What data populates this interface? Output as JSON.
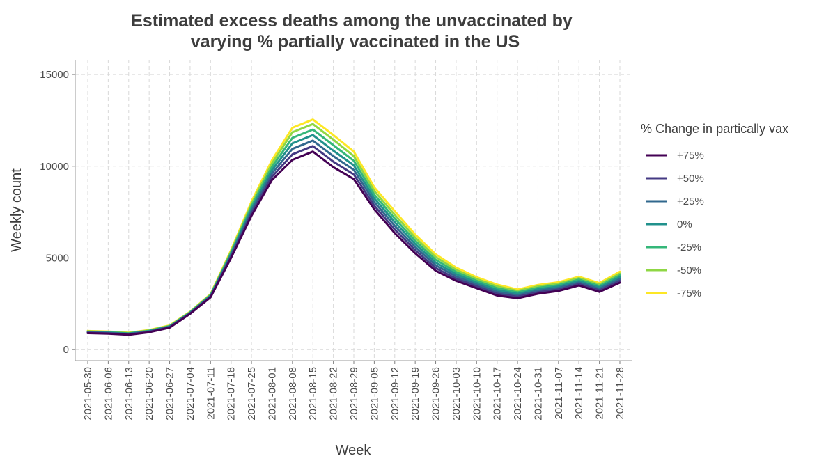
{
  "chart_data": {
    "type": "line",
    "title_lines": [
      "Estimated excess deaths among the unvaccinated by",
      "varying % partially vaccinated in the US"
    ],
    "xlabel": "Week",
    "ylabel": "Weekly count",
    "ylim": [
      -600,
      15800
    ],
    "yticks": [
      0,
      5000,
      10000,
      15000
    ],
    "ytick_labels": [
      "0",
      "5000",
      "10000",
      "15000"
    ],
    "grid": true,
    "legend_position": "right",
    "legend_title": "% Change in partically vax",
    "categories": [
      "2021-05-30",
      "2021-06-06",
      "2021-06-13",
      "2021-06-20",
      "2021-06-27",
      "2021-07-04",
      "2021-07-11",
      "2021-07-18",
      "2021-07-25",
      "2021-08-01",
      "2021-08-08",
      "2021-08-15",
      "2021-08-22",
      "2021-08-29",
      "2021-09-05",
      "2021-09-12",
      "2021-09-19",
      "2021-09-26",
      "2021-10-03",
      "2021-10-10",
      "2021-10-17",
      "2021-10-24",
      "2021-10-31",
      "2021-11-07",
      "2021-11-14",
      "2021-11-21",
      "2021-11-28"
    ],
    "series": [
      {
        "name": "+75%",
        "color": "#440154",
        "values": [
          900,
          870,
          810,
          950,
          1200,
          1950,
          2850,
          5000,
          7300,
          9250,
          10350,
          10800,
          9950,
          9300,
          7650,
          6350,
          5250,
          4300,
          3750,
          3350,
          2950,
          2800,
          3050,
          3200,
          3500,
          3150,
          3650
        ]
      },
      {
        "name": "+50%",
        "color": "#443a83",
        "values": [
          920,
          890,
          830,
          970,
          1220,
          1970,
          2880,
          5070,
          7430,
          9430,
          10650,
          11100,
          10250,
          9550,
          7850,
          6550,
          5420,
          4450,
          3870,
          3450,
          3050,
          2880,
          3130,
          3280,
          3580,
          3230,
          3750
        ]
      },
      {
        "name": "+25%",
        "color": "#31688e",
        "values": [
          940,
          910,
          850,
          990,
          1240,
          1990,
          2910,
          5140,
          7560,
          9610,
          10950,
          11400,
          10550,
          9800,
          8050,
          6750,
          5590,
          4600,
          3990,
          3550,
          3150,
          2960,
          3210,
          3360,
          3660,
          3310,
          3850
        ]
      },
      {
        "name": "0%",
        "color": "#21918c",
        "values": [
          960,
          930,
          870,
          1010,
          1260,
          2010,
          2940,
          5210,
          7690,
          9790,
          11250,
          11700,
          10850,
          10050,
          8250,
          6950,
          5760,
          4750,
          4110,
          3650,
          3250,
          3040,
          3290,
          3440,
          3740,
          3390,
          3950
        ]
      },
      {
        "name": "-25%",
        "color": "#35b779",
        "values": [
          980,
          950,
          890,
          1030,
          1280,
          2030,
          2970,
          5280,
          7820,
          9970,
          11550,
          12000,
          11150,
          10300,
          8450,
          7150,
          5930,
          4900,
          4230,
          3750,
          3350,
          3120,
          3370,
          3520,
          3820,
          3470,
          4050
        ]
      },
      {
        "name": "-50%",
        "color": "#8fd744",
        "values": [
          1000,
          970,
          910,
          1050,
          1300,
          2050,
          3000,
          5350,
          7950,
          10150,
          11850,
          12300,
          11450,
          10550,
          8650,
          7350,
          6100,
          5050,
          4350,
          3850,
          3450,
          3200,
          3450,
          3600,
          3900,
          3550,
          4150
        ]
      },
      {
        "name": "-75%",
        "color": "#fde725",
        "values": [
          1020,
          990,
          930,
          1070,
          1320,
          2070,
          3030,
          5420,
          8080,
          10330,
          12100,
          12550,
          11700,
          10800,
          8850,
          7550,
          6270,
          5200,
          4470,
          3950,
          3550,
          3280,
          3530,
          3680,
          3980,
          3630,
          4250
        ]
      }
    ]
  }
}
